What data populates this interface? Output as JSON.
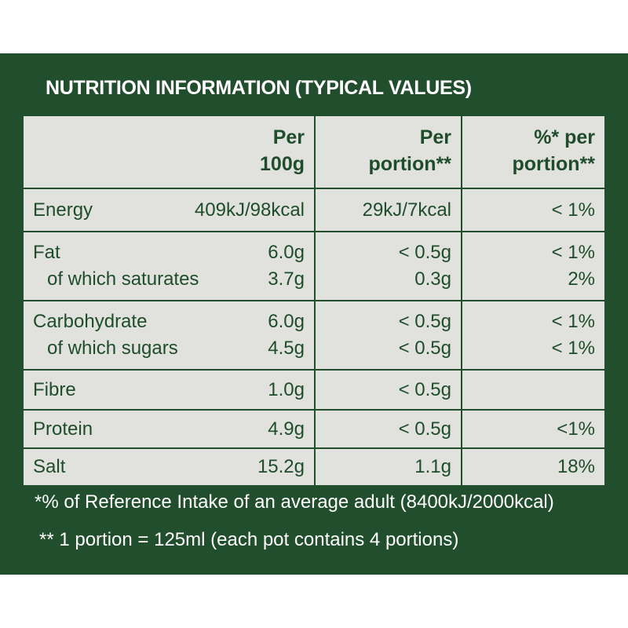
{
  "title": "NUTRITION INFORMATION (TYPICAL VALUES)",
  "table": {
    "header": [
      [
        "Per",
        "100g"
      ],
      [
        "Per",
        "portion**"
      ],
      [
        "%* per",
        "portion**"
      ]
    ],
    "groups": [
      [
        [
          "Energy",
          "409kJ/98kcal",
          "29kJ/7kcal",
          "< 1%"
        ]
      ],
      [
        [
          "Fat",
          "6.0g",
          "< 0.5g",
          "< 1%"
        ],
        [
          "of which saturates",
          "3.7g",
          "0.3g",
          "2%"
        ]
      ],
      [
        [
          "Carbohydrate",
          "6.0g",
          "< 0.5g",
          "< 1%"
        ],
        [
          "of which sugars",
          "4.5g",
          "< 0.5g",
          "< 1%"
        ]
      ],
      [
        [
          "Fibre",
          "1.0g",
          "< 0.5g",
          null
        ]
      ],
      [
        [
          "Protein",
          "4.9g",
          "< 0.5g",
          "<1%"
        ]
      ],
      [
        [
          "Salt",
          "15.2g",
          "1.1g",
          "18%"
        ]
      ]
    ]
  },
  "footnotes": [
    "*% of Reference Intake of an average adult (8400kJ/2000kcal)",
    "** 1 portion = 125ml (each pot contains 4 portions)"
  ]
}
